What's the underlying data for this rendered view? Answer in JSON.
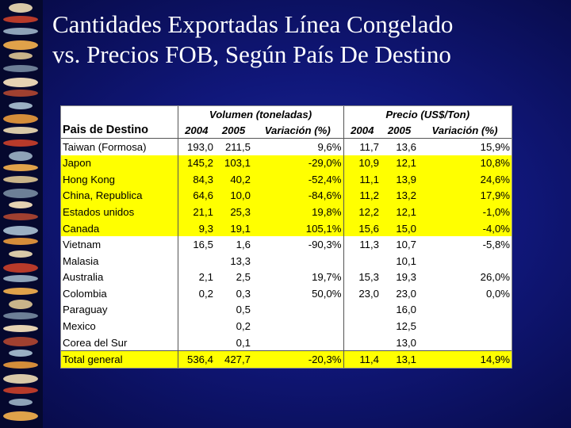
{
  "title": {
    "line1": "Cantidades Exportadas Línea Congelado",
    "line2": "vs. Precios FOB, Según País De Destino"
  },
  "colors": {
    "background": "#10177a",
    "highlight": "#ffff00",
    "title_text": "#ffffff"
  },
  "sidebar": {
    "decoration": "seafood-illustrations-strip"
  },
  "table": {
    "group_volumen": "Volumen (toneladas)",
    "group_precio": "Precio (US$/Ton)",
    "country_header": "Pais de Destino",
    "columns": [
      "2004",
      "2005",
      "Variación (%)",
      "2004",
      "2005",
      "Variación (%)"
    ],
    "rows": [
      {
        "country": "Taiwan (Formosa)",
        "v2004": "193,0",
        "v2005": "211,5",
        "vvar": "9,6%",
        "p2004": "11,7",
        "p2005": "13,6",
        "pvar": "15,9%",
        "highlight": false
      },
      {
        "country": "Japon",
        "v2004": "145,2",
        "v2005": "103,1",
        "vvar": "-29,0%",
        "p2004": "10,9",
        "p2005": "12,1",
        "pvar": "10,8%",
        "highlight": true
      },
      {
        "country": "Hong Kong",
        "v2004": "84,3",
        "v2005": "40,2",
        "vvar": "-52,4%",
        "p2004": "11,1",
        "p2005": "13,9",
        "pvar": "24,6%",
        "highlight": true
      },
      {
        "country": "China, Republica",
        "v2004": "64,6",
        "v2005": "10,0",
        "vvar": "-84,6%",
        "p2004": "11,2",
        "p2005": "13,2",
        "pvar": "17,9%",
        "highlight": true
      },
      {
        "country": "Estados unidos",
        "v2004": "21,1",
        "v2005": "25,3",
        "vvar": "19,8%",
        "p2004": "12,2",
        "p2005": "12,1",
        "pvar": "-1,0%",
        "highlight": true
      },
      {
        "country": "Canada",
        "v2004": "9,3",
        "v2005": "19,1",
        "vvar": "105,1%",
        "p2004": "15,6",
        "p2005": "15,0",
        "pvar": "-4,0%",
        "highlight": true
      },
      {
        "country": "Vietnam",
        "v2004": "16,5",
        "v2005": "1,6",
        "vvar": "-90,3%",
        "p2004": "11,3",
        "p2005": "10,7",
        "pvar": "-5,8%",
        "highlight": false
      },
      {
        "country": "Malasia",
        "v2004": "",
        "v2005": "13,3",
        "vvar": "",
        "p2004": "",
        "p2005": "10,1",
        "pvar": "",
        "highlight": false
      },
      {
        "country": "Australia",
        "v2004": "2,1",
        "v2005": "2,5",
        "vvar": "19,7%",
        "p2004": "15,3",
        "p2005": "19,3",
        "pvar": "26,0%",
        "highlight": false
      },
      {
        "country": "Colombia",
        "v2004": "0,2",
        "v2005": "0,3",
        "vvar": "50,0%",
        "p2004": "23,0",
        "p2005": "23,0",
        "pvar": "0,0%",
        "highlight": false
      },
      {
        "country": "Paraguay",
        "v2004": "",
        "v2005": "0,5",
        "vvar": "",
        "p2004": "",
        "p2005": "16,0",
        "pvar": "",
        "highlight": false
      },
      {
        "country": "Mexico",
        "v2004": "",
        "v2005": "0,2",
        "vvar": "",
        "p2004": "",
        "p2005": "12,5",
        "pvar": "",
        "highlight": false
      },
      {
        "country": "Corea del Sur",
        "v2004": "",
        "v2005": "0,1",
        "vvar": "",
        "p2004": "",
        "p2005": "13,0",
        "pvar": "",
        "highlight": false
      }
    ],
    "total": {
      "country": "Total general",
      "v2004": "536,4",
      "v2005": "427,7",
      "vvar": "-20,3%",
      "p2004": "11,4",
      "p2005": "13,1",
      "pvar": "14,9%",
      "highlight": true
    }
  }
}
